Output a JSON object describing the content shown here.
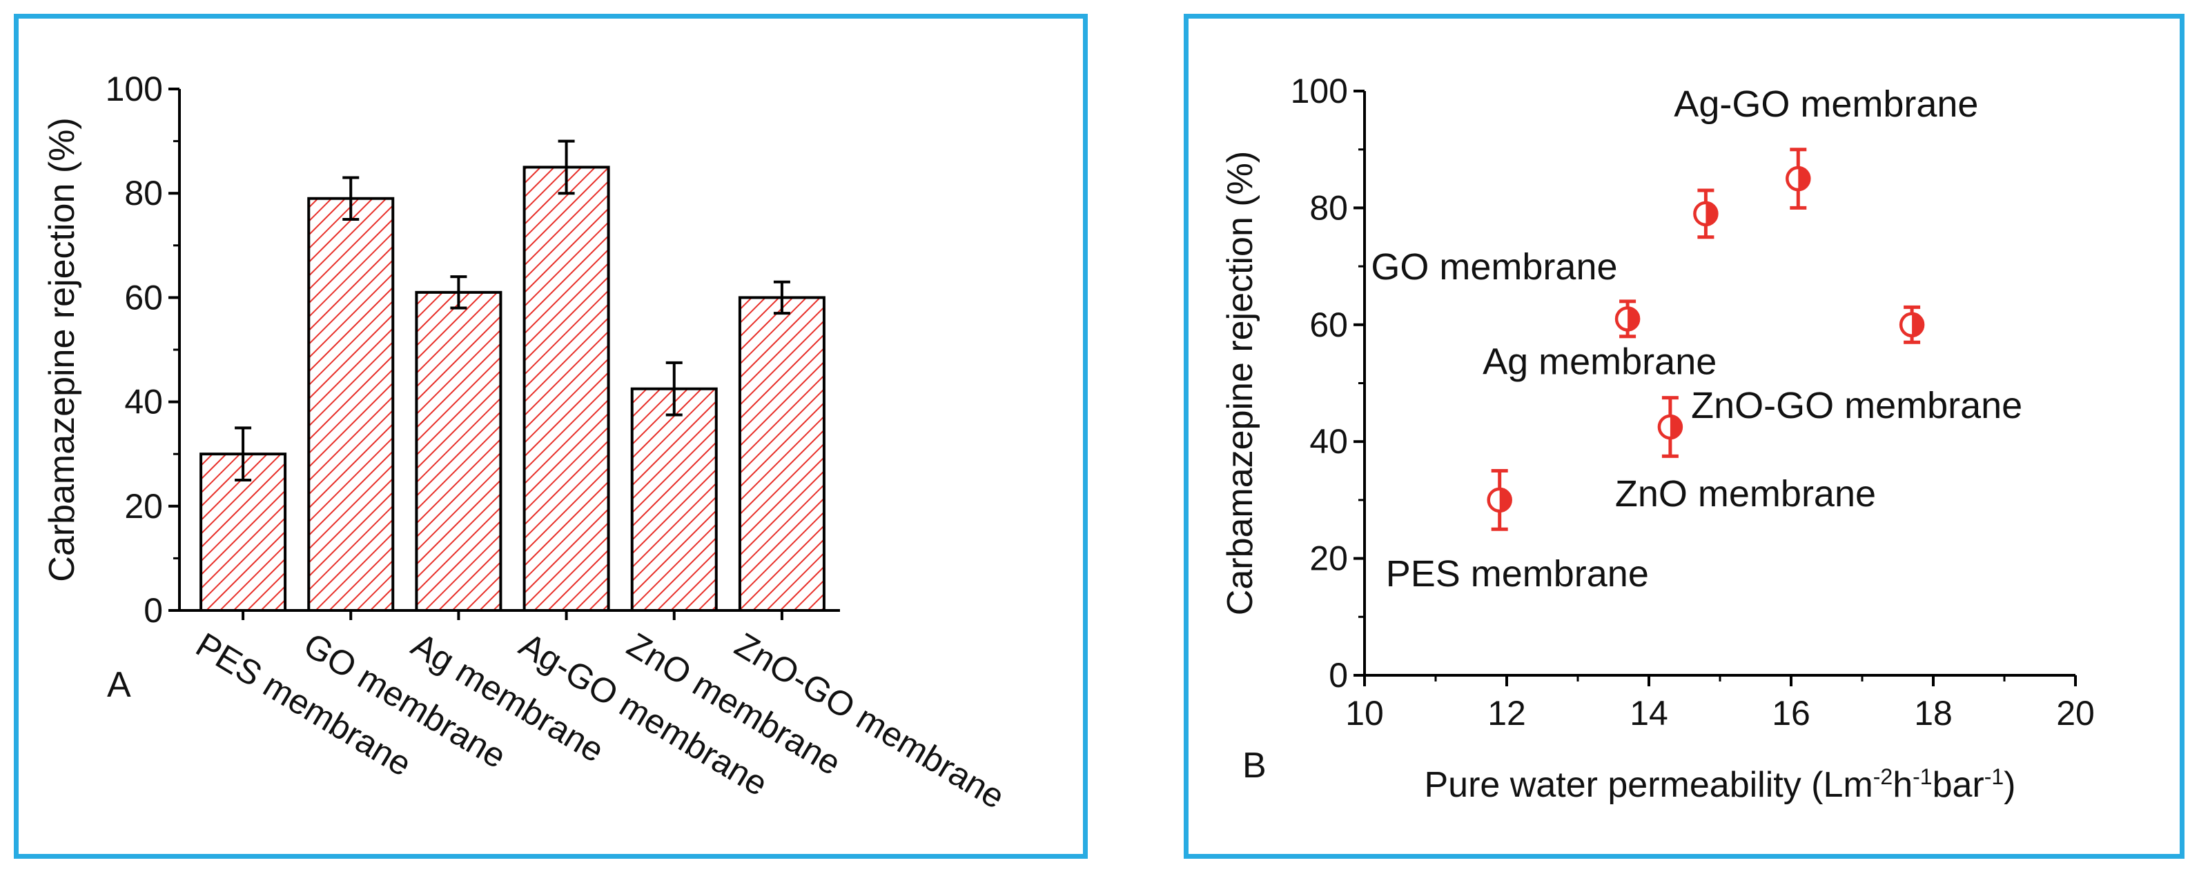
{
  "chart_data": [
    {
      "panel_label": "A",
      "type": "bar",
      "title": "",
      "xlabel": "",
      "ylabel": "Carbamazepine rejection (%)",
      "ylim": [
        0,
        100
      ],
      "yticks": [
        "0",
        "20",
        "40",
        "60",
        "80",
        "100"
      ],
      "categories": [
        "PES membrane",
        "GO membrane",
        "Ag membrane",
        "Ag-GO membrane",
        "ZnO membrane",
        "ZnO-GO membrane"
      ],
      "values": [
        30,
        79,
        61,
        85,
        42.5,
        60
      ],
      "errors": [
        5,
        4,
        3,
        5,
        5,
        3
      ],
      "bar_fill": "hatched",
      "colors": {
        "hatch": "#e8302a",
        "outline": "#000000"
      }
    },
    {
      "panel_label": "B",
      "type": "scatter",
      "title": "",
      "xlabel": "Pure water permeability (Lm",
      "xlabel_parts": [
        "Pure water permeability (Lm",
        "-2",
        "h",
        "-1",
        "bar",
        "-1",
        ")"
      ],
      "ylabel": "Carbamazepine rejection (%)",
      "xlim": [
        10,
        20
      ],
      "ylim": [
        0,
        100
      ],
      "xticks": [
        "10",
        "12",
        "14",
        "16",
        "18",
        "20"
      ],
      "yticks": [
        "0",
        "20",
        "40",
        "60",
        "80",
        "100"
      ],
      "points": [
        {
          "label": "PES membrane",
          "x": 11.9,
          "y": 30,
          "err": 5
        },
        {
          "label": "GO membrane",
          "x": 14.8,
          "y": 79,
          "err": 4
        },
        {
          "label": "Ag membrane",
          "x": 13.7,
          "y": 61,
          "err": 3
        },
        {
          "label": "Ag-GO membrane",
          "x": 16.1,
          "y": 85,
          "err": 5
        },
        {
          "label": "ZnO membrane",
          "x": 14.3,
          "y": 42.5,
          "err": 5
        },
        {
          "label": "ZnO-GO membrane",
          "x": 17.7,
          "y": 60,
          "err": 3
        }
      ],
      "marker": "half-filled circle",
      "colors": {
        "marker": "#e8302a"
      }
    }
  ]
}
